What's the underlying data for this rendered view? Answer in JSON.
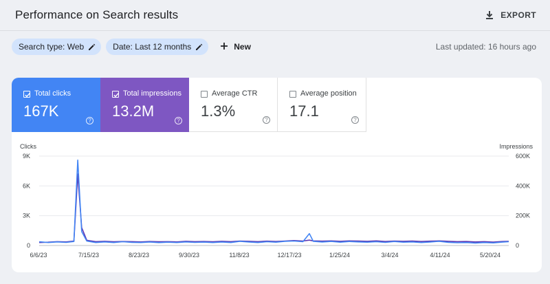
{
  "header": {
    "title": "Performance on Search results",
    "export_label": "EXPORT"
  },
  "filters": {
    "search_type": "Search type: Web",
    "date": "Date: Last 12 months",
    "new_label": "New",
    "last_updated": "Last updated: 16 hours ago"
  },
  "metrics": {
    "clicks": {
      "label": "Total clicks",
      "value": "167K",
      "checked": true
    },
    "impressions": {
      "label": "Total impressions",
      "value": "13.2M",
      "checked": true
    },
    "ctr": {
      "label": "Average CTR",
      "value": "1.3%",
      "checked": false
    },
    "position": {
      "label": "Average position",
      "value": "17.1",
      "checked": false
    },
    "help_glyph": "?"
  },
  "colors": {
    "clicks": "#4285f4",
    "impressions": "#5e35b1",
    "chip": "#d2e3fc"
  },
  "chart_data": {
    "type": "line",
    "left_axis_label": "Clicks",
    "right_axis_label": "Impressions",
    "left_ticks": [
      "9K",
      "6K",
      "3K",
      "0"
    ],
    "right_ticks": [
      "600K",
      "400K",
      "200K",
      "0"
    ],
    "ylim_left": [
      0,
      9000
    ],
    "ylim_right": [
      0,
      600000
    ],
    "x_labels": [
      "6/6/23",
      "7/15/23",
      "8/23/23",
      "9/30/23",
      "11/8/23",
      "12/17/23",
      "1/25/24",
      "3/4/24",
      "4/11/24",
      "5/20/24"
    ],
    "x_range": [
      "2023-06-06",
      "2024-06-05"
    ],
    "series": [
      {
        "name": "Clicks",
        "axis": "left",
        "color": "#4285f4",
        "points": [
          [
            "2023-06-06",
            380
          ],
          [
            "2023-06-13",
            300
          ],
          [
            "2023-06-20",
            360
          ],
          [
            "2023-06-27",
            310
          ],
          [
            "2023-07-03",
            400
          ],
          [
            "2023-07-06",
            8600
          ],
          [
            "2023-07-09",
            1400
          ],
          [
            "2023-07-13",
            450
          ],
          [
            "2023-07-20",
            300
          ],
          [
            "2023-07-27",
            360
          ],
          [
            "2023-08-03",
            300
          ],
          [
            "2023-08-10",
            380
          ],
          [
            "2023-08-17",
            320
          ],
          [
            "2023-08-24",
            300
          ],
          [
            "2023-08-31",
            350
          ],
          [
            "2023-09-07",
            290
          ],
          [
            "2023-09-14",
            330
          ],
          [
            "2023-09-21",
            300
          ],
          [
            "2023-09-28",
            360
          ],
          [
            "2023-10-05",
            310
          ],
          [
            "2023-10-12",
            340
          ],
          [
            "2023-10-19",
            300
          ],
          [
            "2023-10-26",
            350
          ],
          [
            "2023-11-02",
            300
          ],
          [
            "2023-11-09",
            420
          ],
          [
            "2023-11-16",
            350
          ],
          [
            "2023-11-23",
            300
          ],
          [
            "2023-11-30",
            380
          ],
          [
            "2023-12-07",
            330
          ],
          [
            "2023-12-14",
            420
          ],
          [
            "2023-12-21",
            450
          ],
          [
            "2023-12-28",
            380
          ],
          [
            "2024-01-02",
            1200
          ],
          [
            "2024-01-05",
            420
          ],
          [
            "2024-01-12",
            350
          ],
          [
            "2024-01-19",
            410
          ],
          [
            "2024-01-26",
            330
          ],
          [
            "2024-02-02",
            400
          ],
          [
            "2024-02-09",
            360
          ],
          [
            "2024-02-16",
            330
          ],
          [
            "2024-02-23",
            380
          ],
          [
            "2024-03-01",
            310
          ],
          [
            "2024-03-08",
            400
          ],
          [
            "2024-03-15",
            330
          ],
          [
            "2024-03-22",
            360
          ],
          [
            "2024-03-29",
            300
          ],
          [
            "2024-04-05",
            350
          ],
          [
            "2024-04-12",
            420
          ],
          [
            "2024-04-19",
            320
          ],
          [
            "2024-04-26",
            280
          ],
          [
            "2024-05-03",
            300
          ],
          [
            "2024-05-10",
            250
          ],
          [
            "2024-05-17",
            300
          ],
          [
            "2024-05-24",
            260
          ],
          [
            "2024-05-31",
            340
          ],
          [
            "2024-06-05",
            380
          ]
        ]
      },
      {
        "name": "Impressions",
        "axis": "right",
        "color": "#5e35b1",
        "points": [
          [
            "2023-06-06",
            20000
          ],
          [
            "2023-06-13",
            22000
          ],
          [
            "2023-06-20",
            26000
          ],
          [
            "2023-06-27",
            24000
          ],
          [
            "2023-07-03",
            30000
          ],
          [
            "2023-07-06",
            480000
          ],
          [
            "2023-07-09",
            120000
          ],
          [
            "2023-07-13",
            35000
          ],
          [
            "2023-07-20",
            26000
          ],
          [
            "2023-07-27",
            28000
          ],
          [
            "2023-08-03",
            25000
          ],
          [
            "2023-08-10",
            27000
          ],
          [
            "2023-08-17",
            26000
          ],
          [
            "2023-08-24",
            24000
          ],
          [
            "2023-08-31",
            27000
          ],
          [
            "2023-09-07",
            25000
          ],
          [
            "2023-09-14",
            26000
          ],
          [
            "2023-09-21",
            24000
          ],
          [
            "2023-09-28",
            28000
          ],
          [
            "2023-10-05",
            26000
          ],
          [
            "2023-10-12",
            27000
          ],
          [
            "2023-10-19",
            25000
          ],
          [
            "2023-10-26",
            28000
          ],
          [
            "2023-11-02",
            26000
          ],
          [
            "2023-11-09",
            30000
          ],
          [
            "2023-11-16",
            28000
          ],
          [
            "2023-11-23",
            26000
          ],
          [
            "2023-11-30",
            29000
          ],
          [
            "2023-12-07",
            27000
          ],
          [
            "2023-12-14",
            30000
          ],
          [
            "2023-12-21",
            33000
          ],
          [
            "2023-12-28",
            30000
          ],
          [
            "2024-01-02",
            36000
          ],
          [
            "2024-01-05",
            31000
          ],
          [
            "2024-01-12",
            29000
          ],
          [
            "2024-01-19",
            31000
          ],
          [
            "2024-01-26",
            28000
          ],
          [
            "2024-02-02",
            31000
          ],
          [
            "2024-02-09",
            30000
          ],
          [
            "2024-02-16",
            28000
          ],
          [
            "2024-02-23",
            31000
          ],
          [
            "2024-03-01",
            27000
          ],
          [
            "2024-03-08",
            30000
          ],
          [
            "2024-03-15",
            28000
          ],
          [
            "2024-03-22",
            30000
          ],
          [
            "2024-03-29",
            27000
          ],
          [
            "2024-04-05",
            29000
          ],
          [
            "2024-04-12",
            31000
          ],
          [
            "2024-04-19",
            28000
          ],
          [
            "2024-04-26",
            26000
          ],
          [
            "2024-05-03",
            27000
          ],
          [
            "2024-05-10",
            24000
          ],
          [
            "2024-05-17",
            26000
          ],
          [
            "2024-05-24",
            23000
          ],
          [
            "2024-05-31",
            27000
          ],
          [
            "2024-06-05",
            28000
          ]
        ]
      }
    ]
  }
}
